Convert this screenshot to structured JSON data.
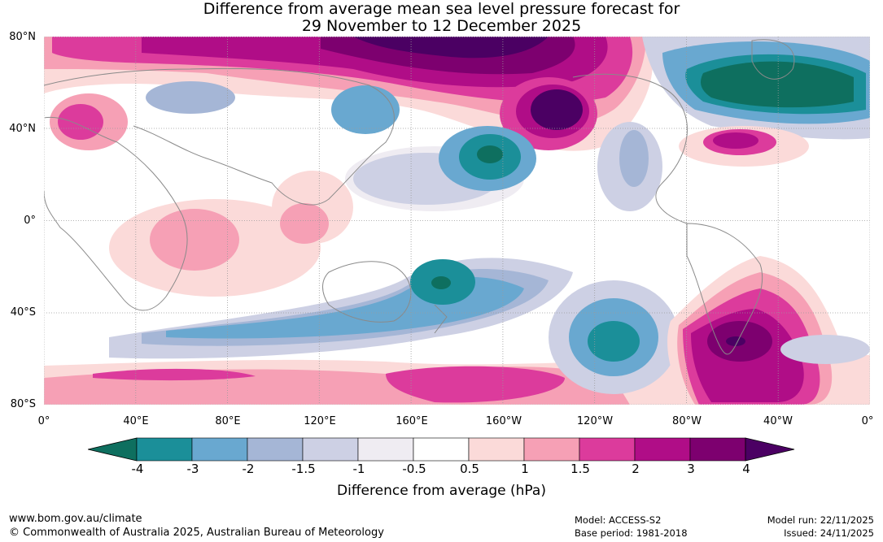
{
  "title": {
    "line1": "Difference from average mean sea level pressure forecast for",
    "line2": "29 November to 12 December 2025"
  },
  "axes": {
    "lat_labels": [
      "80°N",
      "40°N",
      "0°",
      "40°S",
      "80°S"
    ],
    "lon_labels": [
      "0°",
      "40°E",
      "80°E",
      "120°E",
      "160°E",
      "160°W",
      "120°W",
      "80°W",
      "40°W",
      "0°"
    ]
  },
  "colorbar": {
    "ticks": [
      "-4",
      "-3",
      "-2",
      "-1.5",
      "-1",
      "-0.5",
      "0.5",
      "1",
      "1.5",
      "2",
      "3",
      "4"
    ],
    "colors": [
      "#0e6f5f",
      "#1b8f99",
      "#69a8d0",
      "#a5b6d6",
      "#cdd0e4",
      "#efecf2",
      "#ffffff",
      "#fbdad9",
      "#f6a0b5",
      "#dc3b9c",
      "#b00d87",
      "#7d006f",
      "#4b0063"
    ],
    "label": "Difference from average (hPa)"
  },
  "footer": {
    "url": "www.bom.gov.au/climate",
    "copyright": "© Commonwealth of Australia 2025, Australian Bureau of Meteorology",
    "model": "Model: ACCESS-S2",
    "base_period": "Base period: 1981-2018",
    "model_run": "Model run: 22/11/2025",
    "issued": "Issued: 24/11/2025"
  }
}
